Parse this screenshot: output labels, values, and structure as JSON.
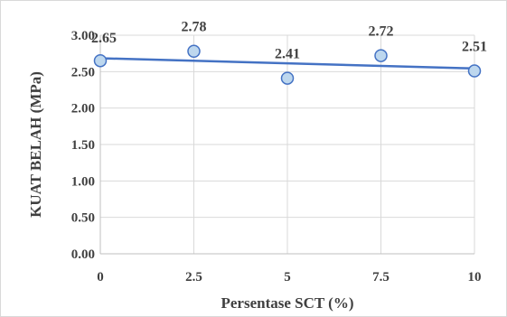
{
  "chart_data": {
    "type": "scatter",
    "title": "",
    "xlabel": "Persentase SCT (%)",
    "ylabel": "KUAT BELAH  (MPa)",
    "x": [
      0,
      2.5,
      5,
      7.5,
      10
    ],
    "y": [
      2.65,
      2.78,
      2.41,
      2.72,
      2.51
    ],
    "point_labels": [
      "2.65",
      "2.78",
      "2.41",
      "2.72",
      "2.51"
    ],
    "x_ticks": [
      "0",
      "2.5",
      "5",
      "7.5",
      "10"
    ],
    "y_ticks": [
      "0.00",
      "0.50",
      "1.00",
      "1.50",
      "2.00",
      "2.50",
      "3.00"
    ],
    "xlim": [
      0,
      10
    ],
    "ylim": [
      0,
      3.0
    ],
    "grid": true,
    "trendline": {
      "type": "linear",
      "start": [
        0,
        2.684
      ],
      "end": [
        10,
        2.544
      ]
    },
    "colors": {
      "marker_fill": "#bdd7ee",
      "marker_stroke": "#4472c4",
      "trendline": "#4472c4",
      "grid": "#d9d9d9",
      "text": "#404040"
    }
  }
}
